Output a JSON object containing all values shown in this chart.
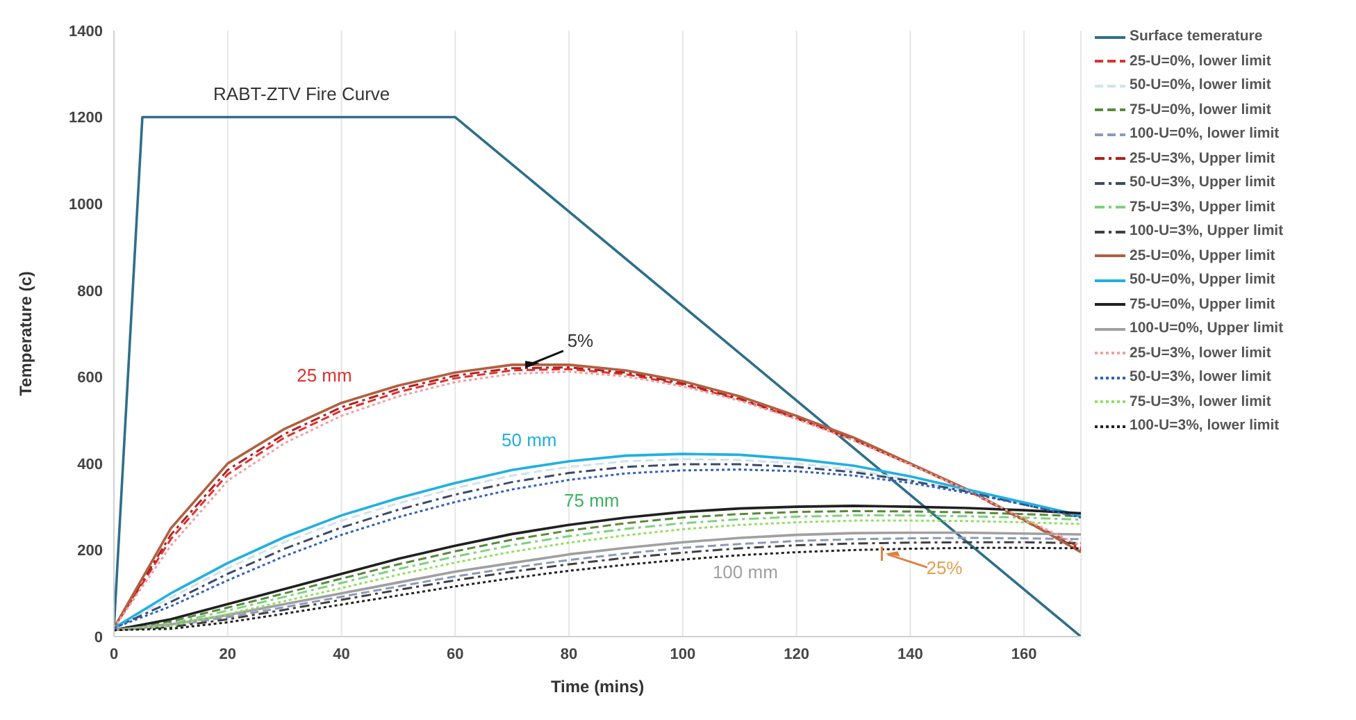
{
  "chart_data": {
    "type": "line",
    "xlabel": "Time (mins)",
    "ylabel": "Temperature (c)",
    "x": [
      0,
      10,
      20,
      30,
      40,
      50,
      60,
      70,
      80,
      90,
      100,
      110,
      120,
      130,
      140,
      150,
      160,
      170
    ],
    "xlim": [
      0,
      170
    ],
    "xticks": [
      0,
      20,
      40,
      60,
      80,
      100,
      120,
      140,
      160
    ],
    "ylim": [
      0,
      1400
    ],
    "yticks": [
      0,
      200,
      400,
      600,
      800,
      1000,
      1200,
      1400
    ],
    "grid": "x",
    "legend": "right",
    "marker": "none",
    "annotations": [
      "RABT-ZTV Fire Curve",
      "25 mm",
      "50 mm",
      "75 mm",
      "100 mm",
      "5%",
      "25%"
    ],
    "series": [
      {
        "name": "Surface temerature",
        "color": "#2e6f8a",
        "line_style": "solid",
        "x": [
          0,
          5,
          60,
          170
        ],
        "values": [
          20,
          1200,
          1200,
          0
        ]
      },
      {
        "name": "25-U=0%, lower limit",
        "color": "#e03030",
        "line_style": "dashed",
        "values": [
          20,
          225,
          375,
          460,
          522,
          565,
          597,
          615,
          618,
          606,
          582,
          548,
          504,
          455,
          398,
          338,
          270,
          205
        ]
      },
      {
        "name": "50-U=0%, lower limit",
        "color": "#cfe3ee",
        "line_style": "dashed",
        "values": [
          20,
          90,
          158,
          218,
          268,
          308,
          343,
          372,
          392,
          405,
          410,
          408,
          400,
          385,
          362,
          335,
          305,
          278
        ]
      },
      {
        "name": "75-U=0%, lower limit",
        "color": "#5a8a3a",
        "line_style": "dashed",
        "values": [
          15,
          35,
          67,
          100,
          134,
          167,
          197,
          224,
          245,
          262,
          275,
          283,
          288,
          290,
          289,
          287,
          283,
          278
        ]
      },
      {
        "name": "100-U=0%, lower limit",
        "color": "#8a9ab8",
        "line_style": "dashed",
        "values": [
          15,
          25,
          45,
          68,
          92,
          116,
          139,
          159,
          177,
          192,
          205,
          214,
          221,
          225,
          227,
          228,
          227,
          225
        ]
      },
      {
        "name": "25-U=3%, Upper limit",
        "color": "#b02020",
        "line_style": "dashdot",
        "values": [
          20,
          235,
          385,
          468,
          530,
          572,
          603,
          620,
          622,
          610,
          585,
          550,
          505,
          455,
          398,
          338,
          268,
          200
        ]
      },
      {
        "name": "50-U=3%, Upper limit",
        "color": "#3a4a6a",
        "line_style": "dashdot",
        "values": [
          20,
          80,
          145,
          203,
          252,
          293,
          328,
          357,
          378,
          392,
          398,
          398,
          392,
          380,
          360,
          335,
          305,
          277
        ]
      },
      {
        "name": "75-U=3%, Upper limit",
        "color": "#7fd07f",
        "line_style": "dashdot",
        "values": [
          15,
          30,
          60,
          92,
          124,
          156,
          185,
          211,
          232,
          249,
          262,
          271,
          277,
          280,
          280,
          278,
          275,
          270
        ]
      },
      {
        "name": "100-U=3%, Upper limit",
        "color": "#404040",
        "line_style": "dashdot",
        "values": [
          15,
          22,
          40,
          62,
          85,
          108,
          130,
          150,
          167,
          182,
          194,
          204,
          211,
          215,
          217,
          218,
          218,
          216
        ]
      },
      {
        "name": "25-U=0%, Upper limit",
        "color": "#b06040",
        "line_style": "solid",
        "values": [
          20,
          250,
          400,
          480,
          540,
          580,
          610,
          628,
          628,
          615,
          590,
          555,
          510,
          460,
          400,
          340,
          270,
          195
        ]
      },
      {
        "name": "50-U=0%, Upper limit",
        "color": "#20b0e0",
        "line_style": "solid",
        "values": [
          20,
          100,
          170,
          230,
          280,
          320,
          355,
          385,
          405,
          418,
          422,
          420,
          410,
          395,
          370,
          340,
          310,
          280
        ]
      },
      {
        "name": "75-U=0%, Upper limit",
        "color": "#202020",
        "line_style": "solid",
        "values": [
          15,
          40,
          75,
          110,
          145,
          180,
          210,
          237,
          258,
          275,
          288,
          296,
          300,
          302,
          300,
          297,
          292,
          285
        ]
      },
      {
        "name": "100-U=0%, Upper limit",
        "color": "#a0a0a0",
        "line_style": "solid",
        "values": [
          15,
          28,
          50,
          75,
          100,
          125,
          150,
          170,
          190,
          205,
          218,
          228,
          235,
          239,
          240,
          240,
          238,
          236
        ]
      },
      {
        "name": "25-U=3%, lower limit",
        "color": "#f0a0a0",
        "line_style": "dotted",
        "values": [
          20,
          210,
          360,
          447,
          510,
          555,
          588,
          607,
          612,
          601,
          578,
          545,
          502,
          453,
          397,
          338,
          272,
          210
        ]
      },
      {
        "name": "50-U=3%, lower limit",
        "color": "#3060c0",
        "line_style": "dotted",
        "values": [
          20,
          70,
          130,
          186,
          235,
          276,
          311,
          340,
          362,
          377,
          384,
          386,
          382,
          372,
          355,
          332,
          305,
          275
        ]
      },
      {
        "name": "75-U=3%, lower limit",
        "color": "#90e060",
        "line_style": "dotted",
        "values": [
          15,
          25,
          52,
          82,
          112,
          143,
          171,
          196,
          217,
          234,
          248,
          258,
          264,
          268,
          268,
          267,
          264,
          260
        ]
      },
      {
        "name": "100-U=3%, lower limit",
        "color": "#202020",
        "line_style": "dotted",
        "values": [
          15,
          18,
          33,
          53,
          74,
          95,
          116,
          135,
          152,
          166,
          178,
          188,
          195,
          200,
          203,
          205,
          205,
          204
        ]
      }
    ]
  }
}
